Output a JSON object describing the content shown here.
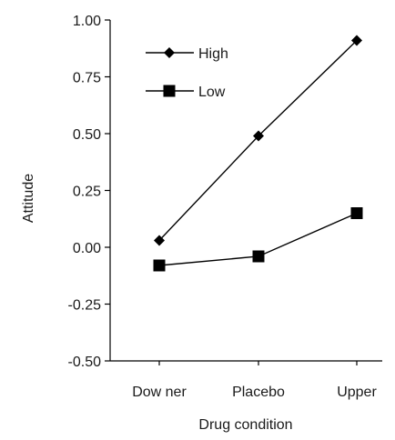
{
  "chart_data": {
    "type": "line",
    "title": "",
    "xlabel": "Drug condition",
    "ylabel": "Attitude",
    "categories": [
      "Dow ner",
      "Placebo",
      "Upper"
    ],
    "ylim": [
      -0.5,
      1.0
    ],
    "yticks": [
      "1.00",
      "0.75",
      "0.50",
      "0.25",
      "0.00",
      "-0.25",
      "-0.50"
    ],
    "ytick_values": [
      1.0,
      0.75,
      0.5,
      0.25,
      0.0,
      -0.25,
      -0.5
    ],
    "grid": false,
    "legend_position": "top-left",
    "series": [
      {
        "name": "High",
        "marker": "diamond",
        "values": [
          0.03,
          0.49,
          0.91
        ]
      },
      {
        "name": "Low",
        "marker": "square",
        "values": [
          -0.08,
          -0.04,
          0.15
        ]
      }
    ]
  }
}
